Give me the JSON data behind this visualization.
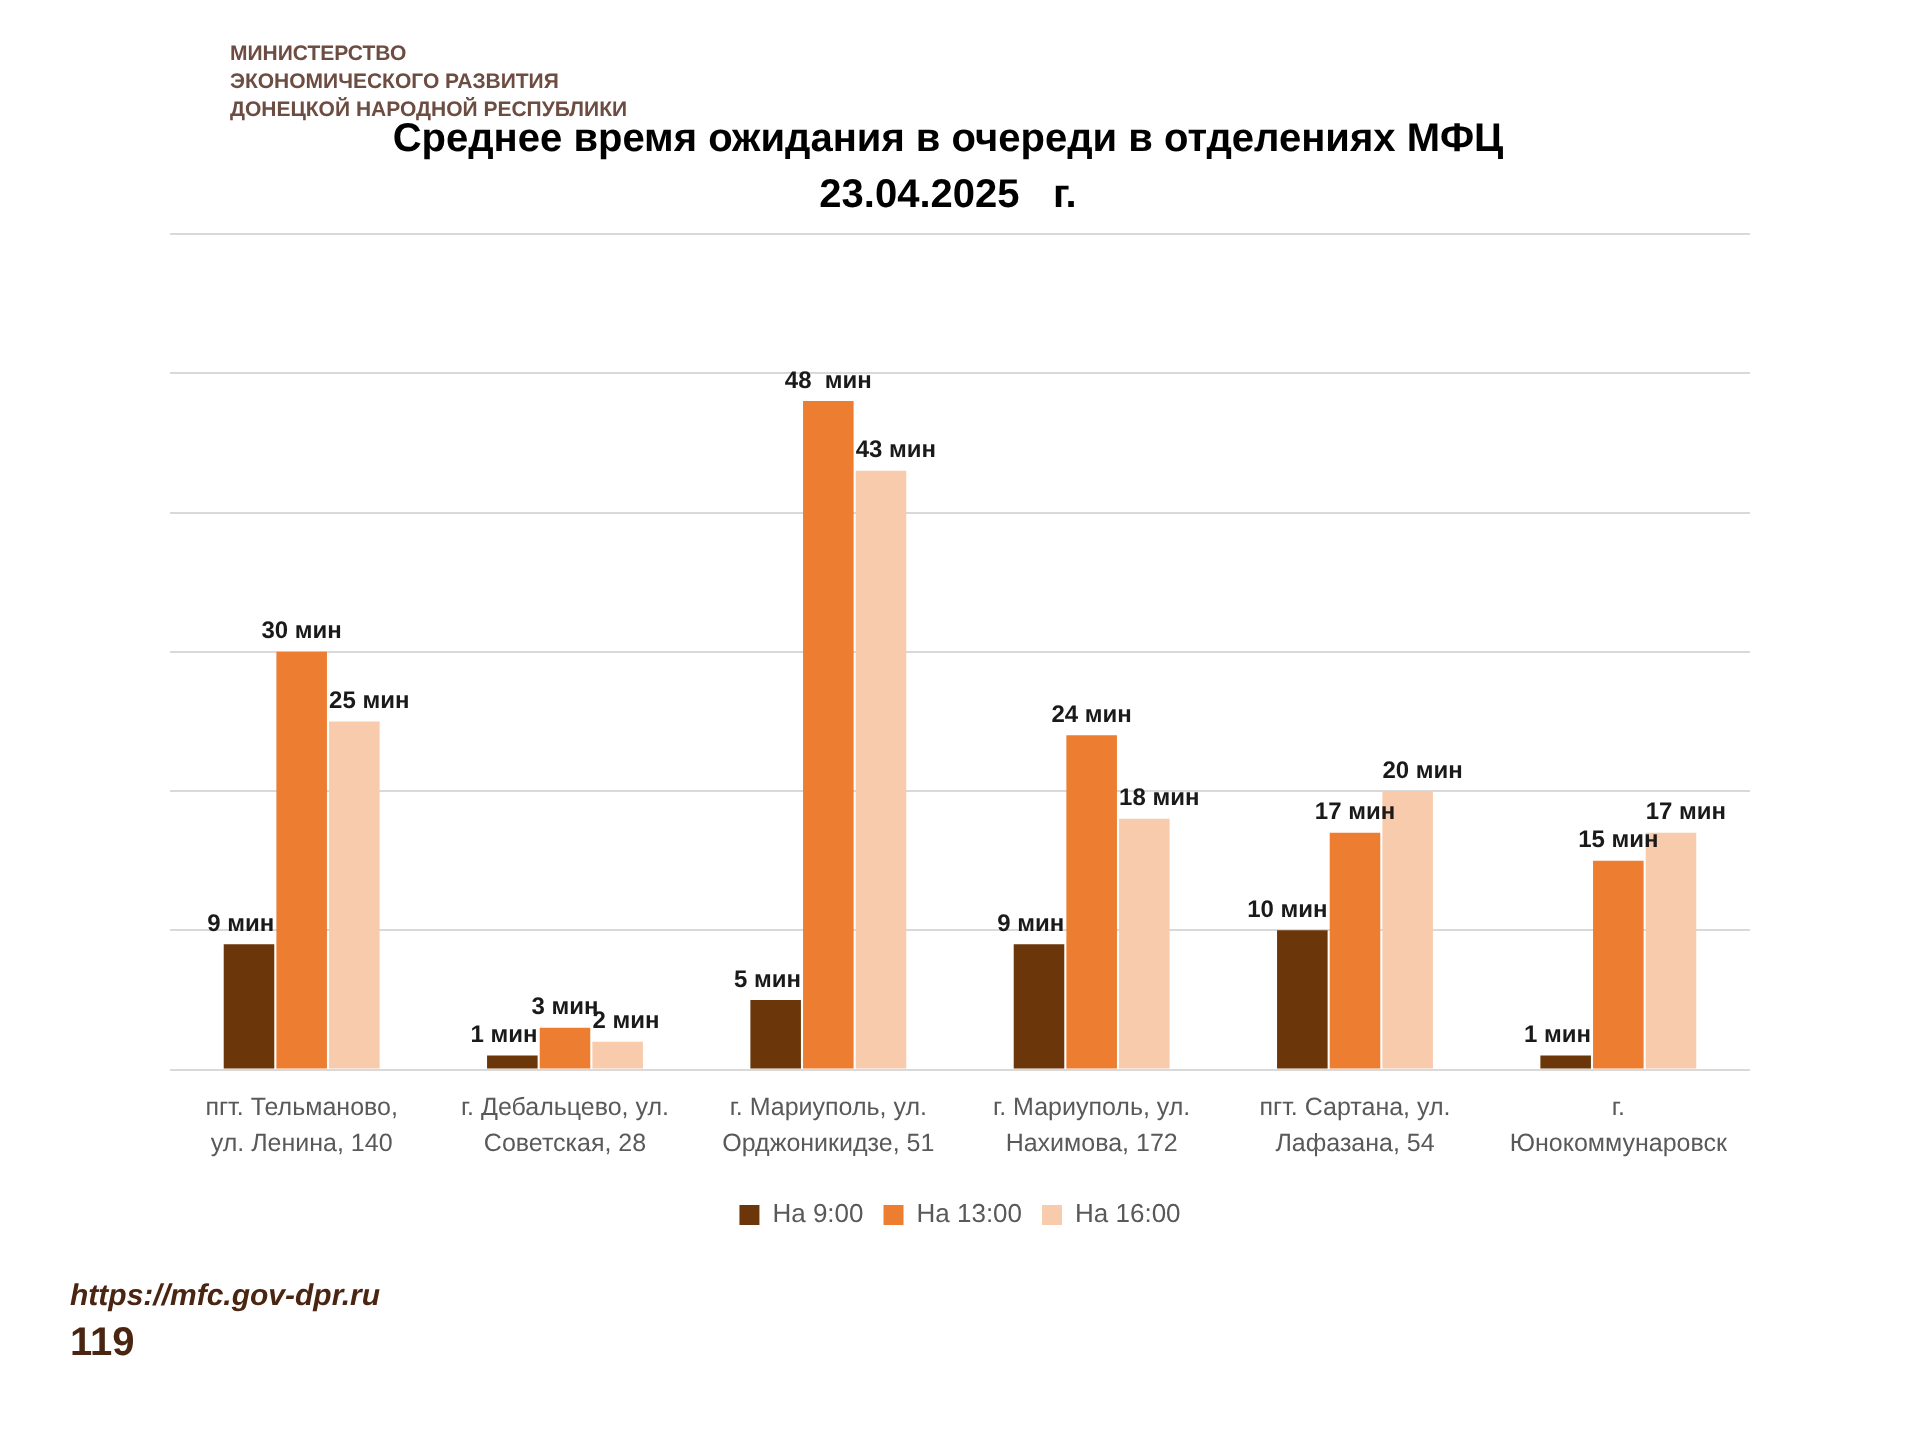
{
  "chart_data": {
    "type": "bar",
    "title": "Среднее время ожидания в очереди в отделениях МФЦ",
    "subtitle": "23.04.2025   г.",
    "categories": [
      "пгт. Тельманово, ул. Ленина, 140",
      "г. Дебальцево, ул. Советская, 28",
      "г. Мариуполь, ул. Орджоникидзе, 51",
      "г. Мариуполь, ул. Нахимова, 172",
      "пгт. Сартана, ул. Лафазана, 54",
      "г. Юнокоммунаровск"
    ],
    "series": [
      {
        "name": "На 9:00",
        "color": "#6b3609",
        "values": [
          9,
          1,
          5,
          9,
          10,
          1
        ],
        "value_labels": [
          "9 мин",
          "1 мин",
          "5 мин",
          "9 мин",
          "10 мин",
          "1 мин"
        ]
      },
      {
        "name": "На 13:00",
        "color": "#ed7d31",
        "values": [
          30,
          3,
          48,
          24,
          17,
          15
        ],
        "value_labels": [
          "30 мин",
          "3 мин",
          "48  мин",
          "24 мин",
          "17 мин",
          "15 мин"
        ]
      },
      {
        "name": "На 16:00",
        "color": "#f8cbad",
        "values": [
          25,
          2,
          43,
          18,
          20,
          17
        ],
        "value_labels": [
          "25 мин",
          "2 мин",
          "43 мин",
          "18 мин",
          "20 мин",
          "17 мин"
        ]
      }
    ],
    "ylim": [
      0,
      60
    ],
    "yticks": [
      {
        "value": 0,
        "label": null
      },
      {
        "value": 10,
        "label": null
      },
      {
        "value": 20,
        "label": null
      },
      {
        "value": 30,
        "label": null
      },
      {
        "value": 40,
        "label": null
      },
      {
        "value": 50,
        "label": null
      },
      {
        "value": 60,
        "label": null
      }
    ],
    "grid": "y",
    "tick_labels": "x",
    "legend": "bottom",
    "annotations": [
      "МИНИСТЕРСТВО\nЭКОНОМИЧЕСКОГО РАЗВИТИЯ\nДОНЕЦКОЙ НАРОДНОЙ РЕСПУБЛИКИ",
      "https://mfc.gov-dpr.ru",
      "119"
    ]
  }
}
